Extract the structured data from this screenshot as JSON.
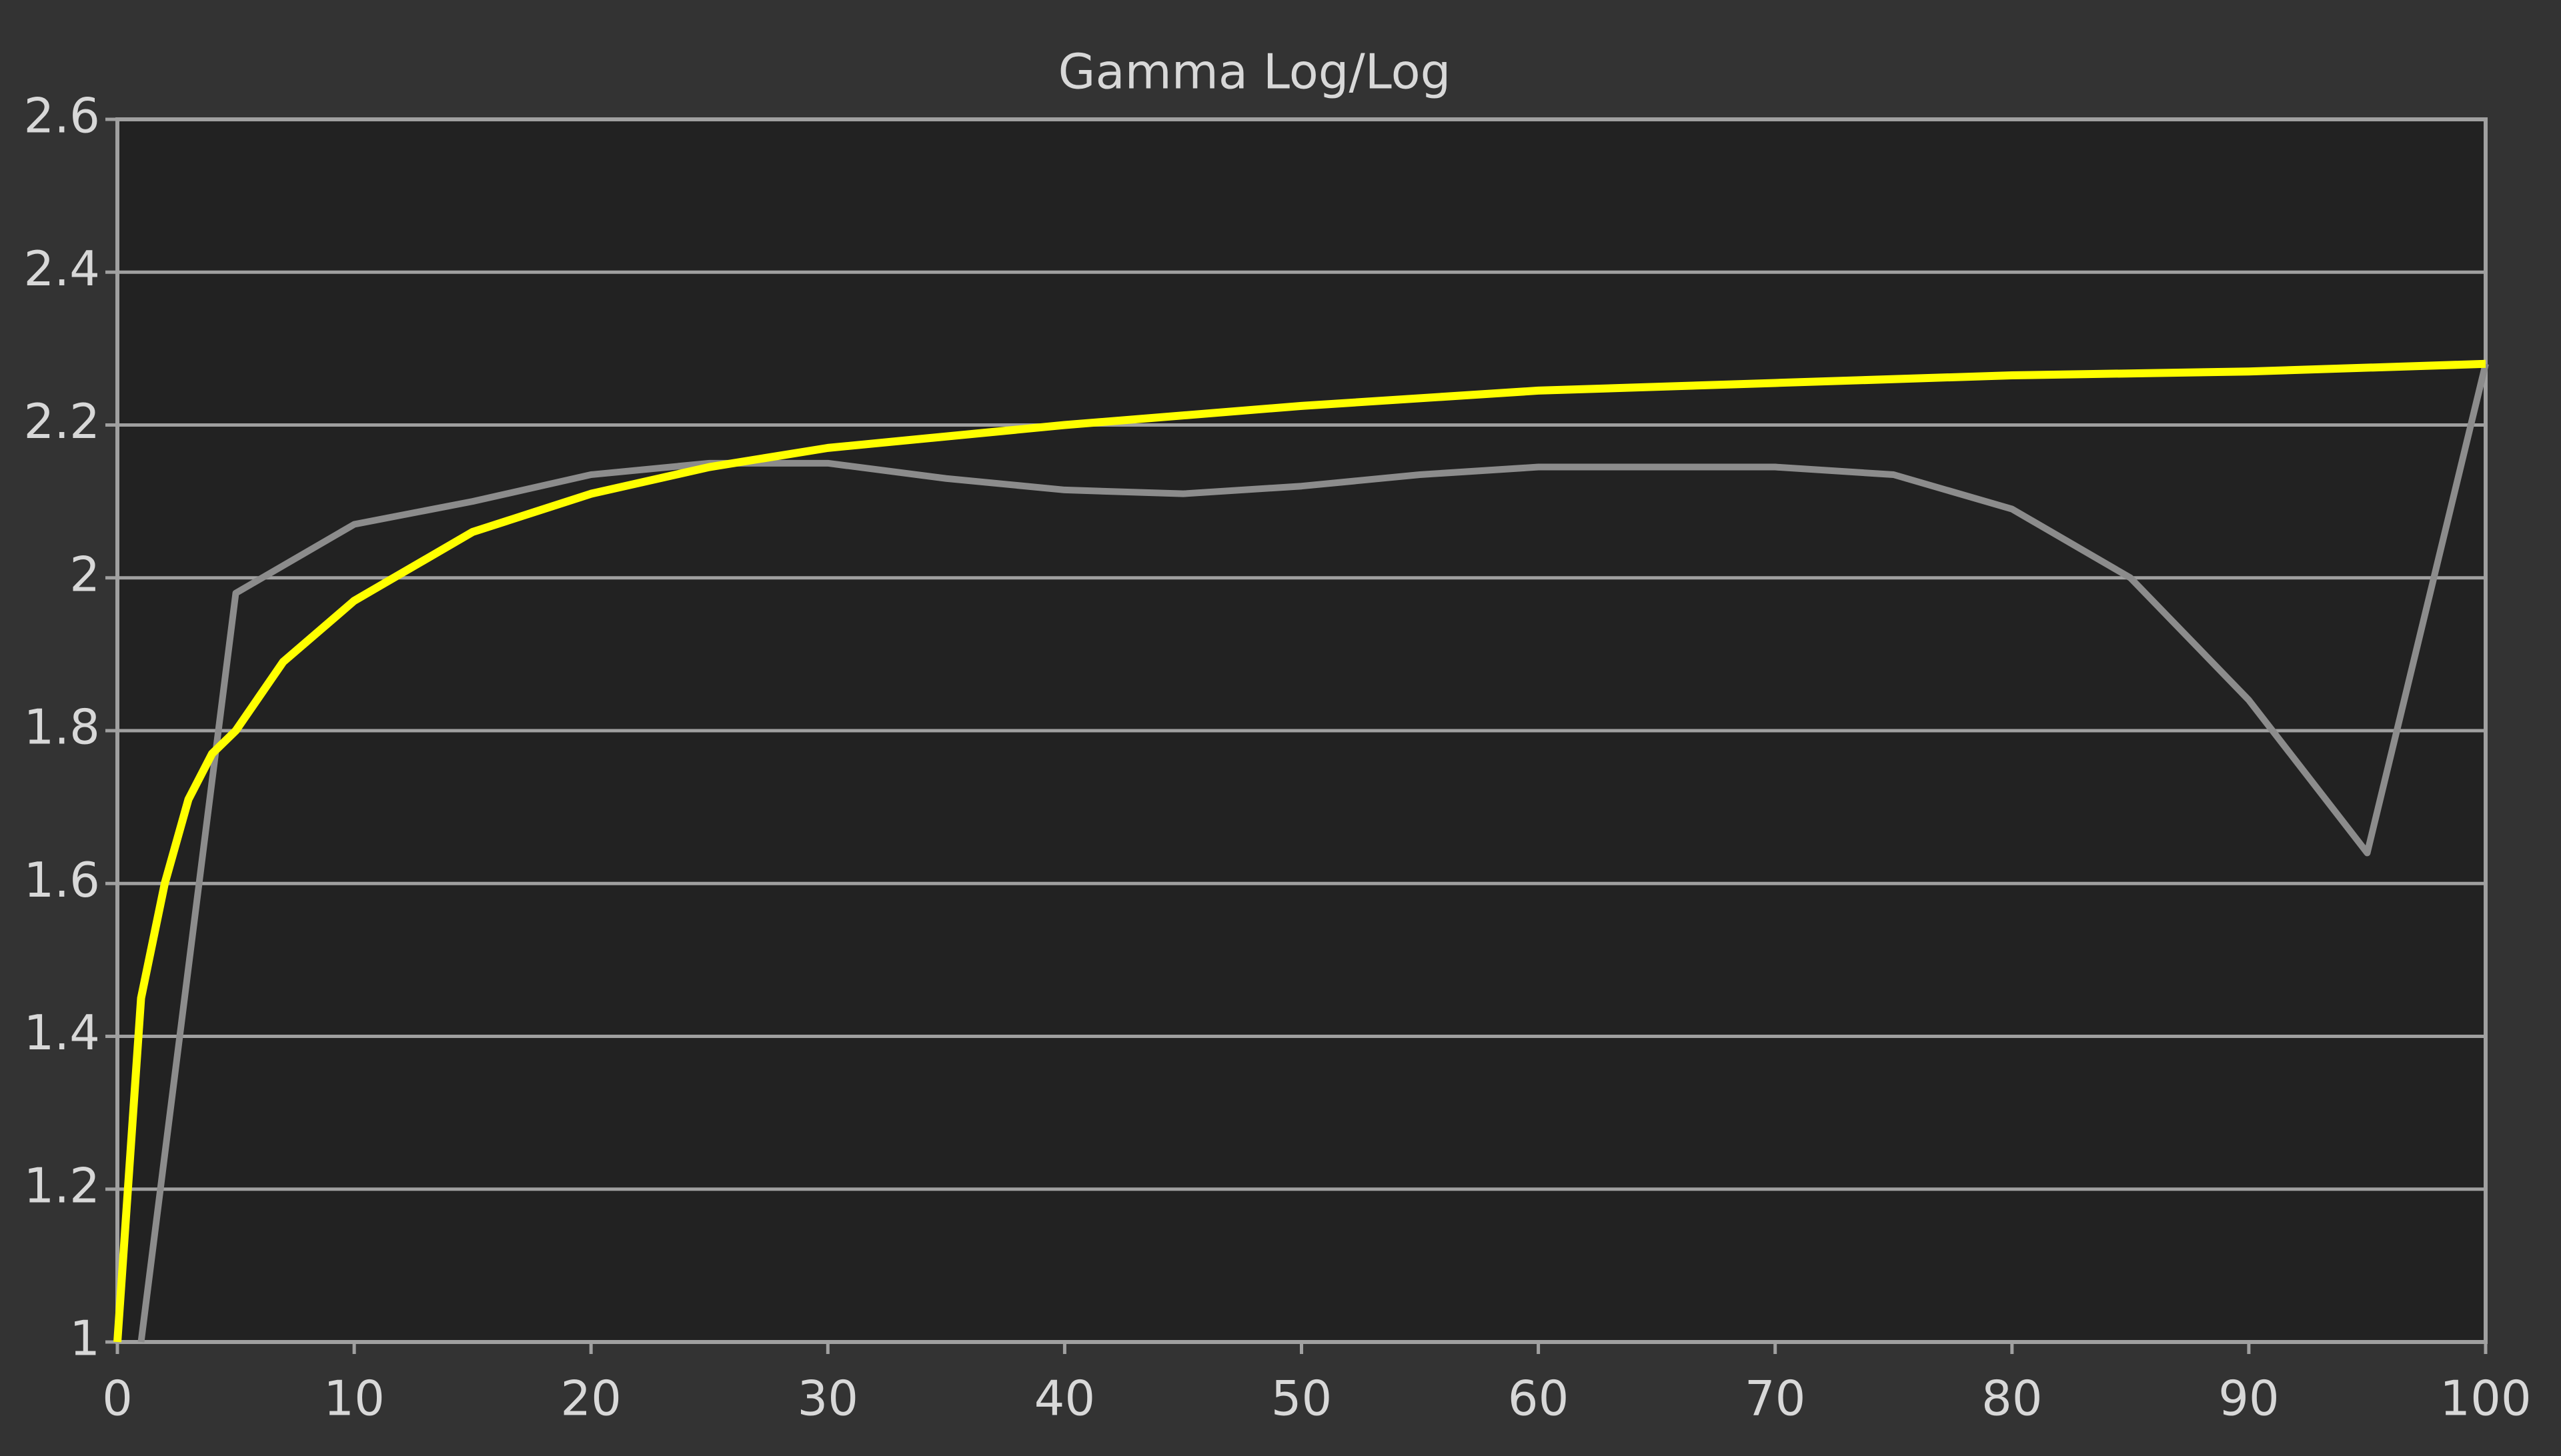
{
  "chart_data": {
    "type": "line",
    "title": "Gamma Log/Log",
    "xlim": [
      0,
      100
    ],
    "xticks": [
      0,
      10,
      20,
      30,
      40,
      50,
      60,
      70,
      80,
      90,
      100
    ],
    "ylim": [
      1,
      2.6
    ],
    "yticks": [
      1,
      1.2,
      1.4,
      1.6,
      1.8,
      2,
      2.2,
      2.4,
      2.6
    ],
    "grid": true,
    "series": [
      {
        "color": "#8c8c8c",
        "x": [
          1,
          5,
          10,
          15,
          20,
          25,
          30,
          35,
          40,
          45,
          50,
          55,
          60,
          65,
          70,
          75,
          80,
          85,
          90,
          95,
          100
        ],
        "values": [
          1,
          1.98,
          2.07,
          2.1,
          2.135,
          2.15,
          2.15,
          2.13,
          2.115,
          2.11,
          2.12,
          2.135,
          2.145,
          2.145,
          2.145,
          2.135,
          2.09,
          2.0,
          1.84,
          1.64,
          2.28
        ]
      },
      {
        "color": "#ffff00",
        "x": [
          0,
          1,
          2,
          3,
          4,
          5,
          7,
          10,
          15,
          20,
          25,
          30,
          40,
          50,
          60,
          70,
          80,
          90,
          100
        ],
        "values": [
          1,
          1.45,
          1.6,
          1.71,
          1.77,
          1.8,
          1.89,
          1.97,
          2.06,
          2.11,
          2.145,
          2.17,
          2.2,
          2.225,
          2.245,
          2.255,
          2.265,
          2.27,
          2.28
        ]
      }
    ]
  }
}
